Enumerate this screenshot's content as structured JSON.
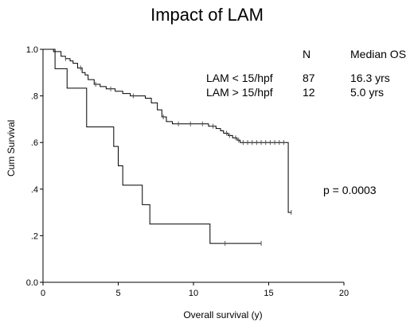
{
  "chart_data": {
    "type": "line",
    "title": "Impact of LAM",
    "xlabel": "Overall survival (y)",
    "ylabel": "Cum Survival",
    "xlim": [
      0,
      20
    ],
    "ylim": [
      0,
      1
    ],
    "x_ticks": [
      "0",
      "5",
      "10",
      "15",
      "20"
    ],
    "y_ticks": [
      "0.0",
      ".2",
      ".4",
      ".6",
      ".8",
      "1.0"
    ],
    "legend": {
      "headers": {
        "n": "N",
        "median": "Median OS"
      },
      "rows": [
        {
          "label": "LAM < 15/hpf",
          "n": "87",
          "median": "16.3 yrs"
        },
        {
          "label": "LAM > 15/hpf",
          "n": "12",
          "median": "5.0 yrs"
        }
      ]
    },
    "annotation": "p = 0.0003",
    "series": [
      {
        "steps": [
          [
            0,
            1.0
          ],
          [
            0.7,
            0.99
          ],
          [
            1.2,
            0.97
          ],
          [
            1.5,
            0.96
          ],
          [
            1.8,
            0.95
          ],
          [
            2.0,
            0.94
          ],
          [
            2.3,
            0.92
          ],
          [
            2.6,
            0.9
          ],
          [
            2.8,
            0.89
          ],
          [
            3.0,
            0.87
          ],
          [
            3.4,
            0.85
          ],
          [
            3.8,
            0.84
          ],
          [
            4.2,
            0.83
          ],
          [
            4.8,
            0.82
          ],
          [
            5.3,
            0.81
          ],
          [
            5.8,
            0.8
          ],
          [
            6.3,
            0.8
          ],
          [
            6.8,
            0.79
          ],
          [
            7.2,
            0.77
          ],
          [
            7.6,
            0.74
          ],
          [
            7.9,
            0.71
          ],
          [
            8.2,
            0.69
          ],
          [
            8.6,
            0.68
          ],
          [
            9.5,
            0.68
          ],
          [
            10.3,
            0.68
          ],
          [
            11.0,
            0.67
          ],
          [
            11.5,
            0.66
          ],
          [
            11.8,
            0.65
          ],
          [
            12.0,
            0.64
          ],
          [
            12.3,
            0.63
          ],
          [
            12.6,
            0.62
          ],
          [
            12.9,
            0.61
          ],
          [
            13.1,
            0.6
          ],
          [
            13.4,
            0.6
          ],
          [
            16.3,
            0.6
          ],
          [
            16.3,
            0.3
          ],
          [
            16.5,
            0.3
          ]
        ],
        "censored_x": [
          1.5,
          2.5,
          3.5,
          4.5,
          6.0,
          8.0,
          9.0,
          9.8,
          10.6,
          11.3,
          12.2,
          12.4,
          12.8,
          13.0,
          13.3,
          13.6,
          13.9,
          14.2,
          14.5,
          14.8,
          15.1,
          15.4,
          15.7,
          16.0,
          16.5
        ]
      },
      {
        "steps": [
          [
            0,
            1.0
          ],
          [
            0.8,
            1.0
          ],
          [
            0.8,
            0.917
          ],
          [
            1.6,
            0.917
          ],
          [
            1.6,
            0.833
          ],
          [
            2.9,
            0.833
          ],
          [
            2.9,
            0.667
          ],
          [
            4.7,
            0.667
          ],
          [
            4.7,
            0.583
          ],
          [
            5.0,
            0.583
          ],
          [
            5.0,
            0.5
          ],
          [
            5.3,
            0.5
          ],
          [
            5.3,
            0.417
          ],
          [
            6.6,
            0.417
          ],
          [
            6.6,
            0.333
          ],
          [
            7.1,
            0.333
          ],
          [
            7.1,
            0.25
          ],
          [
            11.1,
            0.25
          ],
          [
            11.1,
            0.167
          ],
          [
            14.5,
            0.167
          ]
        ],
        "censored_x": [
          12.1,
          14.5
        ]
      }
    ]
  }
}
